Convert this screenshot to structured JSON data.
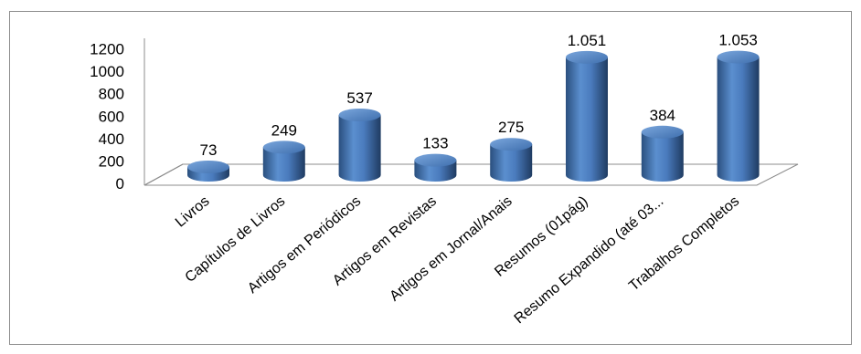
{
  "chart_data": {
    "type": "bar",
    "style": "3d-cylinder",
    "title": "",
    "xlabel": "",
    "ylabel": "",
    "ylim": [
      0,
      1200
    ],
    "yticks": [
      "0",
      "200",
      "400",
      "600",
      "800",
      "1000",
      "1200"
    ],
    "grid": false,
    "legend": "none",
    "bar_color": "#4f81bd",
    "categories": [
      "Livros",
      "Capítulos de Livros",
      "Artigos em Periódicos",
      "Artigos em Revistas",
      "Artigos em Jornal/Anais",
      "Resumos (01pág)",
      "Resumo Expandido (até 03...",
      "Trabalhos Completos"
    ],
    "values": [
      73,
      249,
      537,
      133,
      275,
      1051,
      384,
      1053
    ],
    "value_labels": [
      "73",
      "249",
      "537",
      "133",
      "275",
      "1.051",
      "384",
      "1.053"
    ]
  }
}
